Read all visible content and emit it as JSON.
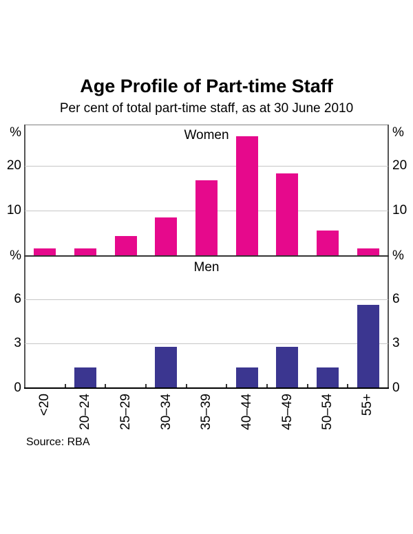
{
  "title": "Age Profile of Part-time Staff",
  "subtitle": "Per cent of total part-time staff, as at 30 June 2010",
  "source": "Source: RBA",
  "colors": {
    "women_bar": "#E6098C",
    "men_bar": "#3B3690",
    "gridline": "#C6C6C6",
    "panel_divider": "#333333",
    "bottom_axis": "#000000",
    "plot_border": "#555555",
    "plot_border_top": "#808080",
    "text": "#000000"
  },
  "chart_data": {
    "type": "bar",
    "categories": [
      "<20",
      "20–24",
      "25–29",
      "30–34",
      "35–39",
      "40–44",
      "45–49",
      "50–54",
      "55+"
    ],
    "title": "Age Profile of Part-time Staff",
    "subtitle": "Per cent of total part-time staff, as at 30 June 2010",
    "unit_symbol": "%",
    "legend_position": "none",
    "grid": true,
    "panels": [
      {
        "label": "Women",
        "series_name": "Women",
        "values": [
          1.5,
          1.5,
          4.3,
          8.5,
          16.8,
          26.6,
          18.3,
          5.6,
          1.5
        ],
        "yticks": [
          10,
          20
        ],
        "show_zero_label": false,
        "ylim": [
          0,
          29.2
        ],
        "color": "#E6098C"
      },
      {
        "label": "Men",
        "series_name": "Men",
        "values": [
          0,
          1.4,
          0,
          2.8,
          0,
          1.4,
          2.8,
          1.4,
          5.6
        ],
        "yticks": [
          3,
          6
        ],
        "show_zero_label": true,
        "ylim": [
          0,
          8.85
        ],
        "color": "#3B3690"
      }
    ],
    "source": "Source: RBA"
  }
}
